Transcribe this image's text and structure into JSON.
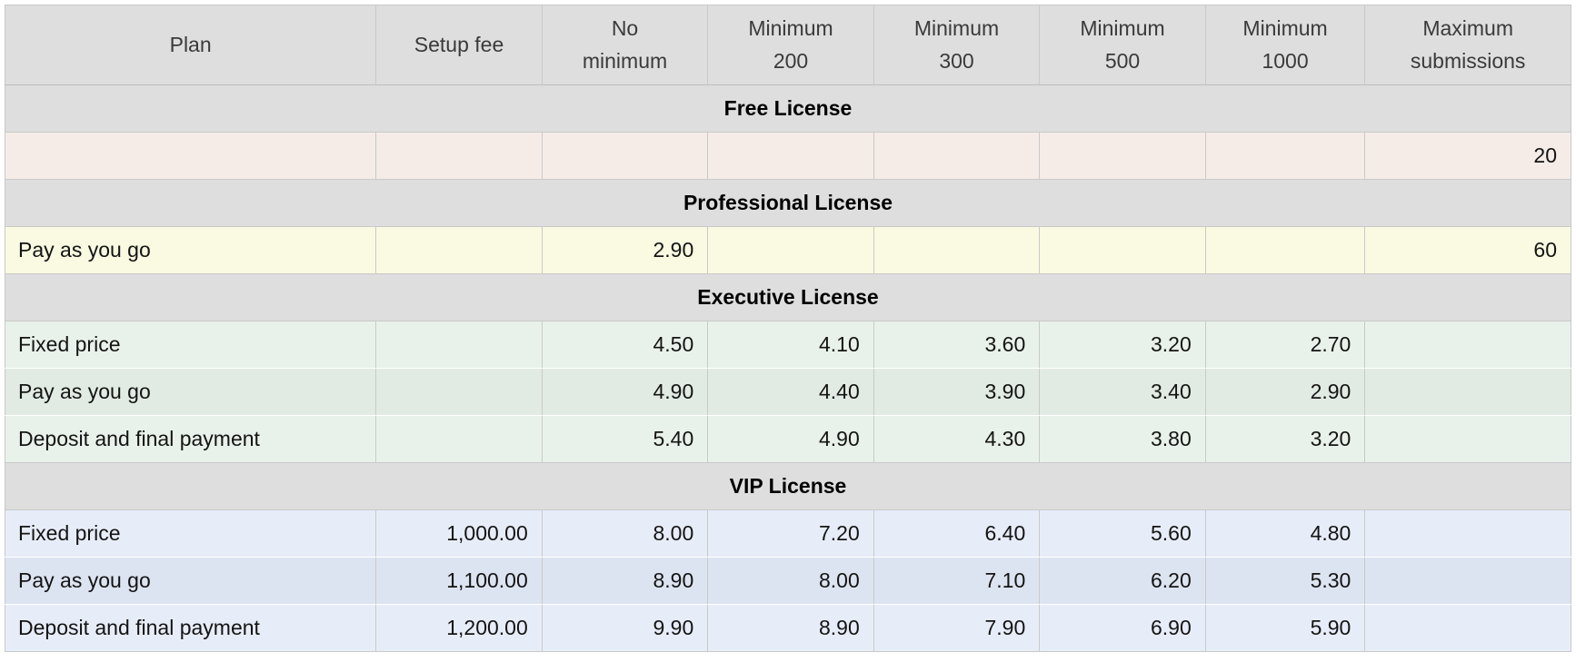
{
  "colors": {
    "header_bg": "#dedede",
    "section_bg": "#dedede",
    "border": "#c9c9c9",
    "page_bg": "#ffffff",
    "free_row_bg": "#f5ece8",
    "professional_row_bg": "#fafae2",
    "executive_row_bg_light": "#e9f2ea",
    "executive_row_bg_dark": "#e1ebe3",
    "vip_row_bg_light": "#e7edf8",
    "vip_row_bg_dark": "#dde4f1"
  },
  "table": {
    "columns": [
      {
        "id": "plan",
        "label_lines": [
          "Plan"
        ],
        "width_pct": 23.6
      },
      {
        "id": "setup-fee",
        "label_lines": [
          "Setup fee"
        ],
        "width_pct": 10.55
      },
      {
        "id": "no-minimum",
        "label_lines": [
          "No",
          "minimum"
        ],
        "width_pct": 10.55
      },
      {
        "id": "minimum-200",
        "label_lines": [
          "Minimum",
          "200"
        ],
        "width_pct": 10.55
      },
      {
        "id": "minimum-300",
        "label_lines": [
          "Minimum",
          "300"
        ],
        "width_pct": 10.55
      },
      {
        "id": "minimum-500",
        "label_lines": [
          "Minimum",
          "500"
        ],
        "width_pct": 10.55
      },
      {
        "id": "minimum-1000",
        "label_lines": [
          "Minimum",
          "1000"
        ],
        "width_pct": 10.15
      },
      {
        "id": "maximum-submissions",
        "label_lines": [
          "Maximum",
          "submissions"
        ],
        "width_pct": 13.1
      }
    ],
    "sections": [
      {
        "title": "Free License",
        "stripes": [
          "#f5ece8"
        ],
        "rows": [
          {
            "plan": "",
            "cells": [
              "",
              "",
              "",
              "",
              "",
              "",
              "20"
            ]
          }
        ]
      },
      {
        "title": "Professional License",
        "stripes": [
          "#fafae2"
        ],
        "rows": [
          {
            "plan": "Pay as you go",
            "cells": [
              "",
              "2.90",
              "",
              "",
              "",
              "",
              "60"
            ]
          }
        ]
      },
      {
        "title": "Executive License",
        "stripes": [
          "#e9f2ea",
          "#e1ebe3"
        ],
        "rows": [
          {
            "plan": "Fixed price",
            "cells": [
              "",
              "4.50",
              "4.10",
              "3.60",
              "3.20",
              "2.70",
              ""
            ]
          },
          {
            "plan": "Pay as you go",
            "cells": [
              "",
              "4.90",
              "4.40",
              "3.90",
              "3.40",
              "2.90",
              ""
            ]
          },
          {
            "plan": "Deposit and final payment",
            "cells": [
              "",
              "5.40",
              "4.90",
              "4.30",
              "3.80",
              "3.20",
              ""
            ]
          }
        ]
      },
      {
        "title": "VIP License",
        "stripes": [
          "#e7edf8",
          "#dde4f1"
        ],
        "rows": [
          {
            "plan": "Fixed price",
            "cells": [
              "1,000.00",
              "8.00",
              "7.20",
              "6.40",
              "5.60",
              "4.80",
              ""
            ]
          },
          {
            "plan": "Pay as you go",
            "cells": [
              "1,100.00",
              "8.90",
              "8.00",
              "7.10",
              "6.20",
              "5.30",
              ""
            ]
          },
          {
            "plan": "Deposit and final payment",
            "cells": [
              "1,200.00",
              "9.90",
              "8.90",
              "7.90",
              "6.90",
              "5.90",
              ""
            ]
          }
        ]
      }
    ]
  }
}
